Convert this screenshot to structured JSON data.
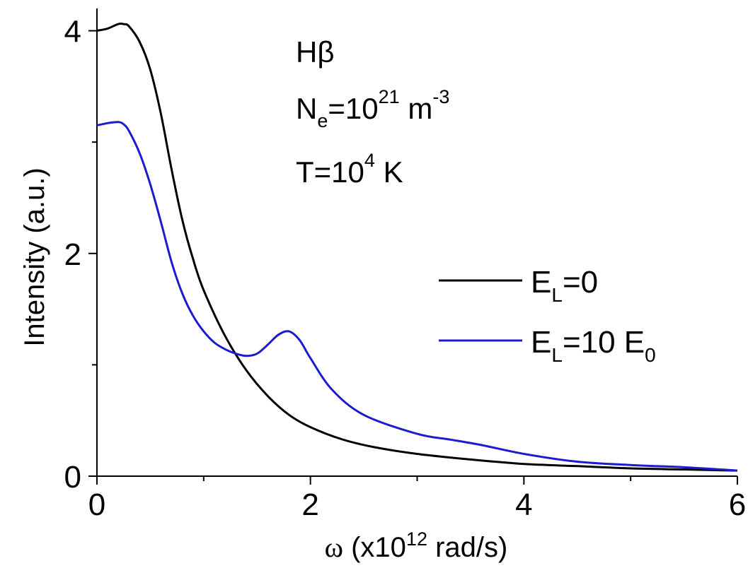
{
  "chart_data": {
    "type": "line",
    "xlabel": {
      "symbol": "ω",
      "open": " (x10",
      "exp": "12",
      "close": " rad/s)"
    },
    "ylabel": "Intensity (a.u.)",
    "xlim": [
      0,
      6
    ],
    "ylim": [
      0,
      4.2
    ],
    "xticks": [
      0,
      2,
      4,
      6
    ],
    "xtick_labels": [
      "0",
      "2",
      "4",
      "6"
    ],
    "xminor": [
      1,
      3,
      5
    ],
    "yticks": [
      0,
      2,
      4
    ],
    "ytick_labels": [
      "0",
      "2",
      "4"
    ],
    "yminor": [
      1,
      3
    ],
    "grid": false,
    "legend_position": "right",
    "annotations": {
      "line1": {
        "base": "Hβ"
      },
      "line2": {
        "base": "N",
        "sub": "e",
        "mid": "=10",
        "sup": "21",
        "unit": " m",
        "unit_sup": "-3"
      },
      "line3": {
        "base": "T=10",
        "sup": "4",
        "tail": " K"
      }
    },
    "series": [
      {
        "legend": {
          "base": "E",
          "sub": "L",
          "tail": "=0"
        },
        "color": "#000000",
        "x": [
          0.0,
          0.1,
          0.2,
          0.25,
          0.3,
          0.4,
          0.5,
          0.6,
          0.7,
          0.8,
          0.9,
          1.0,
          1.2,
          1.4,
          1.6,
          1.8,
          2.0,
          2.3,
          2.6,
          3.0,
          3.5,
          4.0,
          4.5,
          5.0,
          5.5,
          6.0
        ],
        "y": [
          4.0,
          4.02,
          4.06,
          4.06,
          4.04,
          3.9,
          3.65,
          3.25,
          2.75,
          2.3,
          1.95,
          1.67,
          1.26,
          0.95,
          0.72,
          0.55,
          0.44,
          0.33,
          0.26,
          0.2,
          0.15,
          0.11,
          0.09,
          0.07,
          0.06,
          0.05
        ]
      },
      {
        "legend": {
          "base": "E",
          "sub": "L",
          "mid": "=10 E",
          "sub2": "0"
        },
        "color": "#1c1ccf",
        "x": [
          0.0,
          0.1,
          0.2,
          0.25,
          0.3,
          0.4,
          0.5,
          0.6,
          0.7,
          0.8,
          0.9,
          1.0,
          1.1,
          1.2,
          1.3,
          1.4,
          1.5,
          1.6,
          1.7,
          1.8,
          1.9,
          2.0,
          2.2,
          2.5,
          3.0,
          3.3,
          3.6,
          4.0,
          4.5,
          5.0,
          5.5,
          6.0
        ],
        "y": [
          3.15,
          3.17,
          3.18,
          3.16,
          3.1,
          2.9,
          2.62,
          2.28,
          1.92,
          1.64,
          1.44,
          1.3,
          1.2,
          1.14,
          1.1,
          1.08,
          1.1,
          1.18,
          1.27,
          1.3,
          1.22,
          1.06,
          0.78,
          0.55,
          0.38,
          0.33,
          0.28,
          0.2,
          0.13,
          0.1,
          0.08,
          0.05
        ]
      }
    ]
  }
}
